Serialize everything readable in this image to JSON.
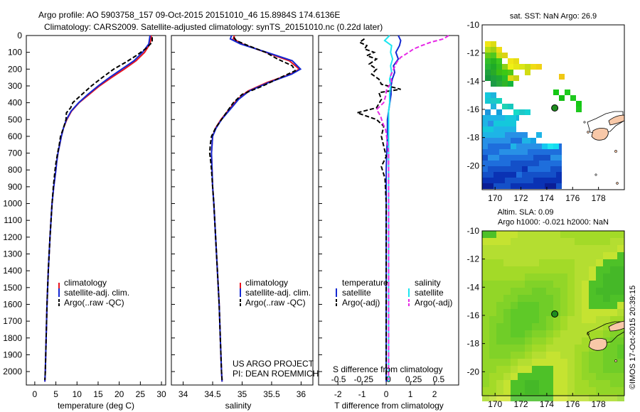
{
  "header": {
    "line1": "Argo profile: AO 5903758_157 09-Oct-2015 20151010_46 15.8984S 174.6136E",
    "line2": "Climatology: CARS2009. Satellite-adjusted climatology: synTS_20151010.nc (0.22d later)"
  },
  "colors": {
    "climatology": "#e8141e",
    "satellite": "#1428d2",
    "argo": "#000000",
    "satellite_s": "#1ee6f0",
    "argo_s": "#e628e6",
    "map_land": "#f8c8a8"
  },
  "chart_data": [
    {
      "type": "line",
      "title": "",
      "xlabel": "temperature (deg C)",
      "ylabel": "",
      "xlim": [
        -2,
        31
      ],
      "ylim": [
        2080,
        0
      ],
      "xticks": [
        0,
        5,
        10,
        15,
        20,
        25,
        30
      ],
      "yticks": [
        0,
        100,
        200,
        300,
        400,
        500,
        600,
        700,
        800,
        900,
        1000,
        1100,
        1200,
        1300,
        1400,
        1500,
        1600,
        1700,
        1800,
        1900,
        2000
      ],
      "legend": [
        "climatology",
        "satellite-adj. clim.",
        "Argo(..raw -QC)"
      ],
      "series": [
        {
          "name": "climatology",
          "style": "solid",
          "color_key": "climatology",
          "depth": [
            0,
            50,
            100,
            150,
            200,
            250,
            300,
            350,
            400,
            450,
            500,
            550,
            600,
            650,
            700,
            750,
            800,
            900,
            1000,
            1200,
            1400,
            1600,
            1800,
            2000,
            2060
          ],
          "values": [
            27.6,
            27.3,
            26,
            24,
            21.2,
            18.2,
            15.3,
            12.9,
            10.5,
            8.7,
            7.6,
            6.8,
            6.3,
            5.9,
            5.5,
            5.2,
            5.0,
            4.5,
            4.1,
            3.6,
            3.2,
            2.9,
            2.7,
            2.5,
            2.4
          ]
        },
        {
          "name": "satellite-adj. clim.",
          "style": "solid",
          "color_key": "satellite",
          "depth": [
            0,
            50,
            100,
            150,
            200,
            250,
            300,
            350,
            400,
            450,
            500,
            550,
            600,
            650,
            700,
            750,
            800,
            900,
            1000,
            1200,
            1400,
            1600,
            1800,
            2000,
            2060
          ],
          "values": [
            27.3,
            27,
            25.5,
            23.5,
            20.6,
            17.7,
            15,
            12.6,
            10.4,
            8.6,
            7.5,
            6.8,
            6.3,
            5.9,
            5.5,
            5.2,
            5.0,
            4.5,
            4.1,
            3.6,
            3.2,
            2.9,
            2.7,
            2.5,
            2.4
          ]
        },
        {
          "name": "Argo(..raw -QC)",
          "style": "dashed",
          "color_key": "argo",
          "depth": [
            10,
            40,
            80,
            120,
            160,
            200,
            250,
            300,
            350,
            400,
            430,
            460,
            500,
            550,
            600,
            650,
            700,
            760,
            800,
            900,
            1000,
            1200,
            1400,
            1600,
            1800,
            2000,
            2050
          ],
          "values": [
            27.8,
            27.8,
            26.2,
            24,
            21.5,
            18.7,
            16,
            13.4,
            11.2,
            9,
            8.5,
            7.5,
            7.4,
            6.8,
            6.1,
            5.8,
            5.4,
            5.0,
            4.8,
            4.4,
            4.1,
            3.6,
            3.2,
            2.9,
            2.7,
            2.5,
            2.4
          ]
        }
      ]
    },
    {
      "type": "line",
      "title": "",
      "xlabel": "salinity",
      "ylabel": "",
      "xlim": [
        33.8,
        36.2
      ],
      "ylim": [
        2080,
        0
      ],
      "xticks": [
        34,
        34.5,
        35,
        35.5,
        36
      ],
      "legend": [
        "climatology",
        "satellite-adj. clim.",
        "Argo(..raw -QC)"
      ],
      "annotations": [
        "US ARGO PROJECT",
        "PI: DEAN ROEMMICH"
      ],
      "series": [
        {
          "name": "climatology",
          "style": "solid",
          "color_key": "climatology",
          "depth": [
            0,
            20,
            50,
            100,
            150,
            200,
            230,
            280,
            330,
            380,
            430,
            500,
            550,
            600,
            650,
            700,
            800,
            900,
            1000,
            1200,
            1400,
            1600,
            1800,
            2000,
            2060
          ],
          "values": [
            34.87,
            34.85,
            35,
            35.4,
            35.8,
            35.97,
            35.82,
            35.42,
            35.1,
            34.92,
            34.8,
            34.64,
            34.55,
            34.5,
            34.49,
            34.48,
            34.49,
            34.5,
            34.52,
            34.55,
            34.58,
            34.61,
            34.63,
            34.65,
            34.66
          ]
        },
        {
          "name": "satellite-adj. clim.",
          "style": "solid",
          "color_key": "satellite",
          "depth": [
            0,
            20,
            50,
            100,
            150,
            200,
            230,
            280,
            330,
            380,
            430,
            500,
            550,
            600,
            650,
            700,
            800,
            900,
            1000,
            1200,
            1400,
            1600,
            1800,
            2000,
            2060
          ],
          "values": [
            34.82,
            34.8,
            34.97,
            35.42,
            35.85,
            35.99,
            35.84,
            35.45,
            35.12,
            34.94,
            34.82,
            34.65,
            34.56,
            34.5,
            34.49,
            34.48,
            34.49,
            34.5,
            34.52,
            34.55,
            34.58,
            34.61,
            34.63,
            34.65,
            34.66
          ]
        },
        {
          "name": "Argo(..raw -QC)",
          "style": "dashed",
          "color_key": "argo",
          "depth": [
            10,
            30,
            60,
            100,
            140,
            180,
            210,
            250,
            300,
            350,
            400,
            450,
            500,
            550,
            600,
            650,
            700,
            760,
            800,
            900,
            1000,
            1200,
            1400,
            1600,
            1800,
            2000,
            2050
          ],
          "values": [
            34.86,
            34.9,
            35.1,
            35.4,
            35.6,
            35.85,
            35.9,
            35.65,
            35.35,
            35,
            34.85,
            34.75,
            34.65,
            34.55,
            34.48,
            34.46,
            34.45,
            34.47,
            34.48,
            34.5,
            34.52,
            34.55,
            34.58,
            34.61,
            34.63,
            34.65,
            34.66
          ]
        }
      ]
    },
    {
      "type": "line",
      "title": "",
      "xlabel": "T difference from climatology",
      "ylabel": "",
      "top_xlabel": "S difference from climatology",
      "xlim": [
        -2.8,
        3
      ],
      "ylim": [
        2080,
        0
      ],
      "xticks": [
        -2,
        -1,
        0,
        1,
        2
      ],
      "top_xticks": [
        -0.5,
        -0.25,
        0,
        0.25,
        0.5
      ],
      "top_xtick_labels": [
        "-0.5",
        "-0.25",
        "0",
        "0.25",
        "0.5"
      ],
      "legend_groups": [
        "temperature",
        "salinity"
      ],
      "legend": [
        "satellite",
        "Argo(-adj)",
        "satellite",
        "Argo(-adj)"
      ],
      "series": [
        {
          "name": "T satellite",
          "style": "solid",
          "color_key": "satellite",
          "depth": [
            0,
            30,
            60,
            100,
            140,
            180,
            220,
            260,
            300,
            350,
            400,
            450,
            500,
            600,
            700,
            800,
            1000,
            1500,
            2060
          ],
          "values": [
            0.5,
            0.6,
            0.55,
            0.4,
            0.5,
            0.3,
            0.35,
            0.25,
            0.2,
            0.2,
            0.15,
            0.1,
            0.05,
            0.05,
            0.02,
            0,
            0,
            0,
            0
          ]
        },
        {
          "name": "T Argo(-adj)",
          "style": "dashed",
          "color_key": "argo",
          "depth": [
            20,
            40,
            60,
            80,
            100,
            120,
            140,
            170,
            200,
            230,
            260,
            290,
            320,
            340,
            380,
            430,
            460,
            500,
            540,
            600,
            660,
            720,
            780,
            850,
            1000,
            1200,
            1500,
            2050
          ],
          "values": [
            -0.9,
            -1.1,
            -0.8,
            -0.9,
            -0.5,
            -0.8,
            -0.4,
            -0.7,
            -0.4,
            -0.6,
            -0.3,
            -0.2,
            0.6,
            -0.3,
            -0.2,
            -0.4,
            -1.2,
            -0.4,
            -0.1,
            -0.2,
            -0.1,
            0,
            -0.2,
            -0.05,
            0,
            0,
            0,
            0
          ]
        },
        {
          "name": "S satellite",
          "style": "solid",
          "color_key": "satellite_s",
          "depth": [
            0,
            30,
            60,
            100,
            140,
            180,
            220,
            260,
            300,
            350,
            400,
            450,
            500,
            600,
            700,
            800,
            1000,
            1500,
            2060
          ],
          "values": [
            0.01,
            -0.04,
            0.03,
            0.02,
            0.04,
            0.02,
            0.03,
            0.01,
            0.02,
            0.01,
            0.01,
            0,
            0,
            0,
            0,
            0,
            0,
            0,
            0
          ]
        },
        {
          "name": "S Argo(-adj)",
          "style": "dashed",
          "color_key": "argo_s",
          "depth": [
            0,
            20,
            40,
            60,
            80,
            100,
            130,
            160,
            200,
            240,
            280,
            320,
            360,
            400,
            440,
            480,
            520,
            560,
            600,
            650,
            700,
            800,
            1000,
            1200,
            1500,
            2050
          ],
          "values": [
            0.6,
            0.55,
            0.42,
            0.33,
            0.25,
            0.2,
            0.12,
            0.08,
            0.05,
            0.02,
            0.03,
            -0.02,
            -0.03,
            -0.05,
            -0.12,
            -0.08,
            -0.06,
            -0.03,
            -0.02,
            -0.01,
            0,
            0,
            0,
            0,
            0,
            0
          ]
        }
      ]
    },
    {
      "type": "heatmap",
      "title": "sat. SST: NaN Argo: 26.9",
      "xlim": [
        169,
        180
      ],
      "ylim": [
        -21.7,
        -10
      ],
      "xticks": [
        170,
        172,
        174,
        176,
        178
      ],
      "xtick_labels": [
        "170",
        "172",
        "174",
        "176",
        "178"
      ],
      "yticks": [
        -10,
        -12,
        -14,
        -16,
        -18,
        -20
      ],
      "ytick_labels": [
        "-10",
        "-12",
        "-14",
        "-16",
        "-18",
        "-20"
      ],
      "argo_position": [
        174.6136,
        -15.8984
      ]
    },
    {
      "type": "heatmap",
      "title_lines": [
        "Altim. SLA: 0.09",
        "Argo h1000: -0.021 h2000: NaN"
      ],
      "xlim": [
        169,
        180
      ],
      "ylim": [
        -21.7,
        -10
      ],
      "xticks": [
        170,
        172,
        174,
        176,
        178
      ],
      "xtick_labels": [
        "170",
        "172",
        "174",
        "176",
        "178"
      ],
      "yticks": [
        -10,
        -12,
        -14,
        -16,
        -18,
        -20
      ],
      "ytick_labels": [
        "-10",
        "-12",
        "-14",
        "-16",
        "-18",
        "-20"
      ],
      "argo_position": [
        174.6136,
        -15.8984
      ]
    }
  ],
  "watermark": "©IMOS 17-Oct-2015 20:39:15"
}
